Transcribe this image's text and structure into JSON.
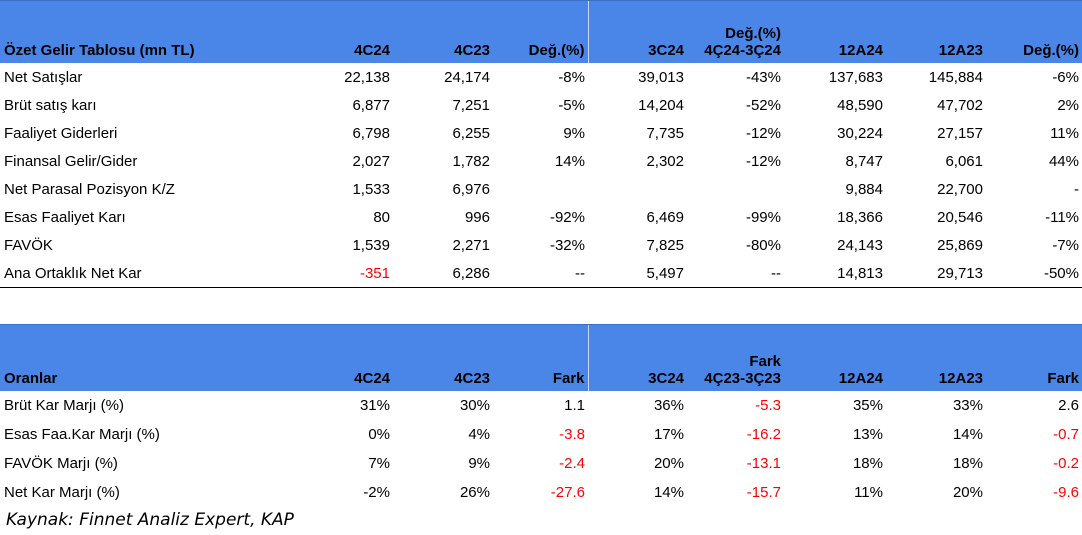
{
  "income": {
    "headers": [
      "Özet Gelir Tablosu (mn TL)",
      "4C24",
      "4C23",
      "Değ.(%)",
      "3C24",
      "Değ.(%)\n4Ç24-3Ç24",
      "12A24",
      "12A23",
      "Değ.(%)"
    ],
    "rows": [
      {
        "label": "Net Satışlar",
        "cells": [
          "22,138",
          "24,174",
          "-8%",
          "39,013",
          "-43%",
          "137,683",
          "145,884",
          "-6%"
        ]
      },
      {
        "label": "Brüt satış karı",
        "cells": [
          "6,877",
          "7,251",
          "-5%",
          "14,204",
          "-52%",
          "48,590",
          "47,702",
          "2%"
        ]
      },
      {
        "label": "Faaliyet Giderleri",
        "cells": [
          "6,798",
          "6,255",
          "9%",
          "7,735",
          "-12%",
          "30,224",
          "27,157",
          "11%"
        ]
      },
      {
        "label": "Finansal Gelir/Gider",
        "cells": [
          "2,027",
          "1,782",
          "14%",
          "2,302",
          "-12%",
          "8,747",
          "6,061",
          "44%"
        ]
      },
      {
        "label": "Net Parasal Pozisyon K/Z",
        "cells": [
          "1,533",
          "6,976",
          "",
          "",
          "",
          "9,884",
          "22,700",
          "-"
        ]
      },
      {
        "label": "Esas Faaliyet Karı",
        "cells": [
          "80",
          "996",
          "-92%",
          "6,469",
          "-99%",
          "18,366",
          "20,546",
          "-11%"
        ]
      },
      {
        "label": "FAVÖK",
        "cells": [
          "1,539",
          "2,271",
          "-32%",
          "7,825",
          "-80%",
          "24,143",
          "25,869",
          "-7%"
        ]
      },
      {
        "label": "Ana Ortaklık Net Kar",
        "cells": [
          "-351",
          "6,286",
          "--",
          "5,497",
          "--",
          "14,813",
          "29,713",
          "-50%"
        ]
      }
    ]
  },
  "ratios": {
    "headers": [
      "Oranlar",
      "4C24",
      "4C23",
      "Fark",
      "3C24",
      "Fark\n4Ç23-3Ç23",
      "12A24",
      "12A23",
      "Fark"
    ],
    "rows": [
      {
        "label": "Brüt Kar Marjı (%)",
        "cells": [
          "31%",
          "30%",
          "1.1",
          "36%",
          "-5.3",
          "35%",
          "33%",
          "2.6"
        ]
      },
      {
        "label": "Esas Faa.Kar Marjı (%)",
        "cells": [
          "0%",
          "4%",
          "-3.8",
          "17%",
          "-16.2",
          "13%",
          "14%",
          "-0.7"
        ]
      },
      {
        "label": "FAVÖK Marjı (%)",
        "cells": [
          "7%",
          "9%",
          "-2.4",
          "20%",
          "-13.1",
          "18%",
          "18%",
          "-0.2"
        ]
      },
      {
        "label": "Net Kar Marjı (%)",
        "cells": [
          "-2%",
          "26%",
          "-27.6",
          "14%",
          "-15.7",
          "11%",
          "20%",
          "-9.6"
        ]
      }
    ]
  },
  "source": "Kaynak: Finnet Analiz Expert, KAP",
  "colors": {
    "header_bg": "#4a86e8",
    "negative": "#ff0000"
  }
}
